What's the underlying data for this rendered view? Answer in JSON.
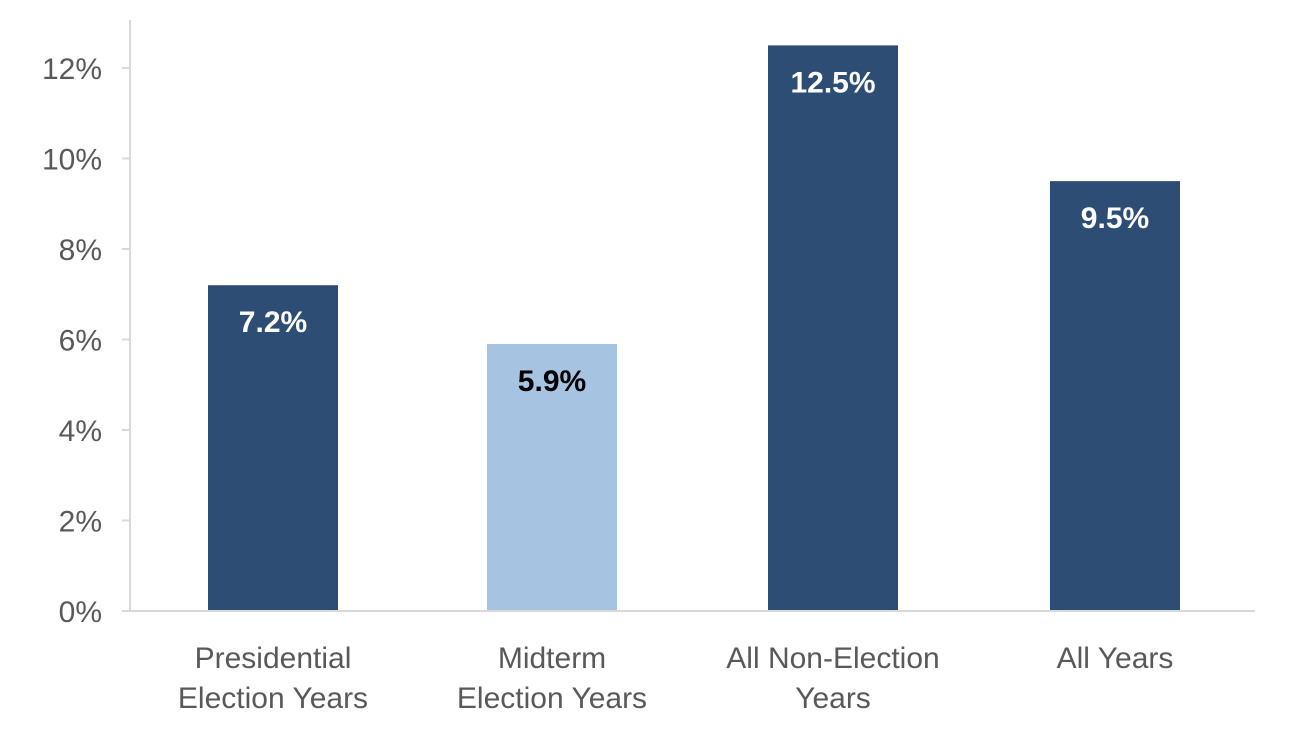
{
  "chart_data": {
    "type": "bar",
    "title": "",
    "xlabel": "",
    "ylabel": "",
    "categories": [
      [
        "Presidential",
        "Election Years"
      ],
      [
        "Midterm",
        "Election Years"
      ],
      [
        "All Non-Election",
        "Years"
      ],
      [
        "All Years"
      ]
    ],
    "values": [
      7.2,
      5.9,
      12.5,
      9.5
    ],
    "data_labels": [
      "7.2%",
      "5.9%",
      "12.5%",
      "9.5%"
    ],
    "bar_colors": [
      "#2E4D74",
      "#A6C3E2",
      "#2E4D74",
      "#2E4D74"
    ],
    "label_colors": [
      "#FFFFFF",
      "#000000",
      "#FFFFFF",
      "#FFFFFF"
    ],
    "ylim": [
      0,
      12.5
    ],
    "y_ticks": [
      0,
      2,
      4,
      6,
      8,
      10,
      12
    ],
    "y_tick_labels": [
      "0%",
      "2%",
      "4%",
      "6%",
      "8%",
      "10%",
      "12%"
    ],
    "grid": false,
    "legend": "none",
    "axis_color": "#D9D9D9",
    "text_color": "#595959"
  }
}
